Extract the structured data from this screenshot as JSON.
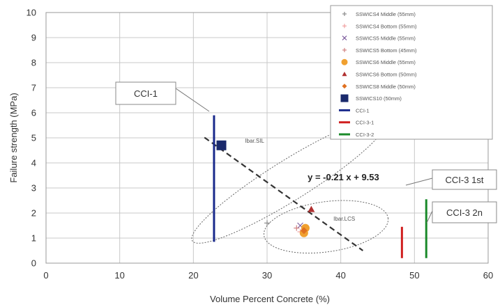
{
  "chart_data": {
    "type": "scatter",
    "title": "",
    "xlabel": "Volume Percent Concrete (%)",
    "ylabel": "Failure strength (MPa)",
    "xlim": [
      0,
      60
    ],
    "ylim": [
      0,
      10
    ],
    "xticks": [
      "0",
      "10",
      "20",
      "30",
      "40",
      "50",
      "60"
    ],
    "yticks": [
      "0",
      "1",
      "2",
      "3",
      "4",
      "5",
      "6",
      "7",
      "8",
      "9",
      "10"
    ],
    "grid": true,
    "legend_position": "top-right",
    "series": [
      {
        "name": "SSWICS4 Middle (55mm)",
        "kind": "point",
        "marker": "plus",
        "color": "#8a8a8a",
        "points": [
          [
            30,
            1.6
          ]
        ]
      },
      {
        "name": "SSWICS4 Bottom (55mm)",
        "kind": "point",
        "marker": "plus",
        "color": "#f0a0a0",
        "points": [
          [
            34.5,
            1.25
          ]
        ]
      },
      {
        "name": "SSWICS5 Middle (55mm)",
        "kind": "point",
        "marker": "x",
        "color": "#8060a0",
        "points": [
          [
            34.5,
            1.5
          ]
        ]
      },
      {
        "name": "SSWICS5 Bottom (45mm)",
        "kind": "point",
        "marker": "plus",
        "color": "#d08080",
        "points": [
          [
            34,
            1.4
          ]
        ]
      },
      {
        "name": "SSWICS6 Middle (55mm)",
        "kind": "point",
        "marker": "circle",
        "color": "#f0a030",
        "points": [
          [
            35,
            1.2
          ],
          [
            35.2,
            1.4
          ]
        ]
      },
      {
        "name": "SSWICS6 Bottom (50mm)",
        "kind": "point",
        "marker": "triangle",
        "color": "#b03030",
        "points": [
          [
            36,
            2.15
          ]
        ]
      },
      {
        "name": "SSWICS8 Middle (50mm)",
        "kind": "point",
        "marker": "diamond",
        "color": "#e07020",
        "points": [
          [
            35,
            1.3
          ]
        ]
      },
      {
        "name": "SSWICS10 (50mm)",
        "kind": "point",
        "marker": "square",
        "color": "#1a2a6c",
        "points": [
          [
            23.8,
            4.7
          ]
        ]
      },
      {
        "name": "CCI-1",
        "kind": "vline",
        "color": "#1a2a8c",
        "x": 22.8,
        "y_range": [
          0.85,
          5.9
        ]
      },
      {
        "name": "CCI-3-1",
        "kind": "vline",
        "color": "#d02020",
        "x": 48.3,
        "y_range": [
          0.2,
          1.45
        ]
      },
      {
        "name": "CCI-3-2",
        "kind": "vline",
        "color": "#1a8a2a",
        "x": 51.6,
        "y_range": [
          0.2,
          2.55
        ]
      }
    ],
    "trendline": {
      "equation": "y = -0.21 x + 9.53",
      "slope": -0.21,
      "intercept": 9.53,
      "x_range": [
        21.5,
        43
      ]
    },
    "ellipses": [
      {
        "label": "Ibar.SIL",
        "center": [
          33,
          3.3
        ],
        "rx": 15.5,
        "ry": 0.8,
        "angle_deg": -32
      },
      {
        "label": "Ibar.LCS",
        "center": [
          38,
          1.45
        ],
        "rx": 8.5,
        "ry": 1.0,
        "angle_deg": -8
      }
    ],
    "callouts": [
      {
        "label": "CCI-1",
        "target": "CCI-1"
      },
      {
        "label": "CCI-3 1st",
        "target": "CCI-3-1"
      },
      {
        "label": "CCI-3 2n",
        "target": "CCI-3-2"
      }
    ]
  }
}
